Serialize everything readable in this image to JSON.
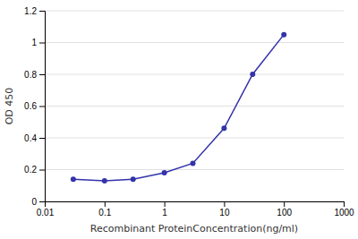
{
  "chart_data": {
    "type": "line",
    "x": [
      0.03,
      0.1,
      0.3,
      1.0,
      3.0,
      10.0,
      30.0,
      100.0
    ],
    "values": [
      0.14,
      0.13,
      0.14,
      0.18,
      0.24,
      0.46,
      0.8,
      1.05
    ],
    "xlabel": "Recombinant ProteinConcentration(ng/ml)",
    "ylabel": "OD 450",
    "log": "x",
    "xlim": [
      0.01,
      1000
    ],
    "ylim": [
      0,
      1.2
    ],
    "xticks": [
      0.01,
      0.1,
      1,
      10,
      100,
      1000
    ],
    "yticks": [
      0,
      0.2,
      0.4,
      0.6,
      0.8,
      1,
      1.2
    ],
    "grid": "y",
    "color": "#3333aa",
    "marker": "circle"
  }
}
